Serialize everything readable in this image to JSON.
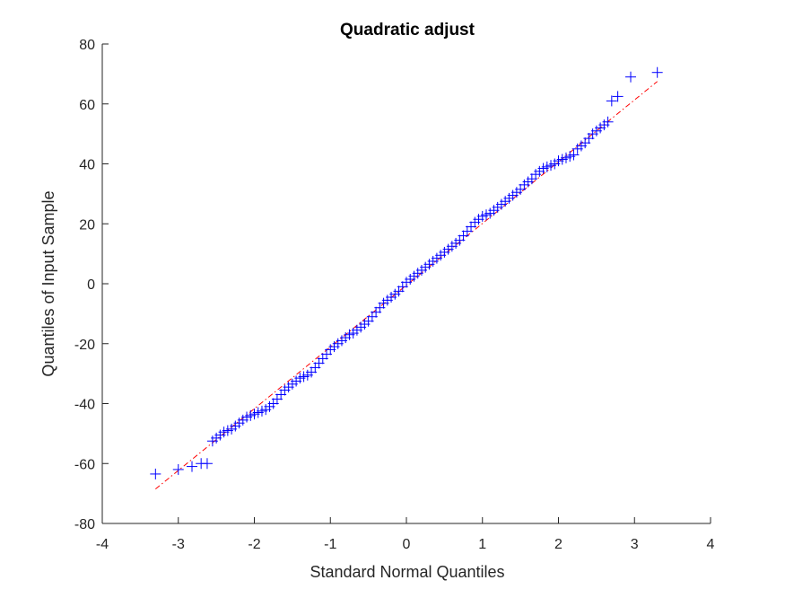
{
  "chart_data": {
    "type": "scatter",
    "title": "Quadratic adjust",
    "xlabel": "Standard Normal Quantiles",
    "ylabel": "Quantiles of Input Sample",
    "xlim": [
      -4,
      4
    ],
    "ylim": [
      -80,
      80
    ],
    "xticks": [
      -4,
      -3,
      -2,
      -1,
      0,
      1,
      2,
      3,
      4
    ],
    "yticks": [
      -80,
      -60,
      -40,
      -20,
      0,
      20,
      40,
      60,
      80
    ],
    "xtick_labels": [
      "-4",
      "-3",
      "-2",
      "-1",
      "0",
      "1",
      "2",
      "3",
      "4"
    ],
    "ytick_labels": [
      "-80",
      "-60",
      "-40",
      "-20",
      "0",
      "20",
      "40",
      "60",
      "80"
    ],
    "grid": false,
    "series": [
      {
        "marker": "+",
        "color": "#0000ff",
        "points": [
          [
            -3.3,
            -63.5
          ],
          [
            -3.0,
            -62.0
          ],
          [
            -2.82,
            -61.0
          ],
          [
            -2.7,
            -60.0
          ],
          [
            -2.62,
            -60.0
          ],
          [
            -2.55,
            -52.5
          ],
          [
            -2.5,
            -51.5
          ],
          [
            -2.45,
            -50.5
          ],
          [
            -2.4,
            -49.5
          ],
          [
            -2.35,
            -49.0
          ],
          [
            -2.3,
            -48.5
          ],
          [
            -2.25,
            -47.5
          ],
          [
            -2.2,
            -46.5
          ],
          [
            -2.15,
            -45.5
          ],
          [
            -2.1,
            -44.5
          ],
          [
            -2.05,
            -44.0
          ],
          [
            -2.0,
            -43.5
          ],
          [
            -1.95,
            -43.0
          ],
          [
            -1.9,
            -42.5
          ],
          [
            -1.85,
            -42.0
          ],
          [
            -1.8,
            -41.0
          ],
          [
            -1.75,
            -40.0
          ],
          [
            -1.7,
            -38.5
          ],
          [
            -1.65,
            -37.0
          ],
          [
            -1.6,
            -35.5
          ],
          [
            -1.55,
            -34.5
          ],
          [
            -1.5,
            -33.5
          ],
          [
            -1.45,
            -32.5
          ],
          [
            -1.4,
            -31.5
          ],
          [
            -1.35,
            -31.0
          ],
          [
            -1.3,
            -30.5
          ],
          [
            -1.25,
            -29.5
          ],
          [
            -1.2,
            -28.0
          ],
          [
            -1.15,
            -26.5
          ],
          [
            -1.1,
            -25.0
          ],
          [
            -1.05,
            -23.5
          ],
          [
            -1.0,
            -22.0
          ],
          [
            -0.95,
            -21.0
          ],
          [
            -0.9,
            -20.0
          ],
          [
            -0.85,
            -19.0
          ],
          [
            -0.8,
            -18.0
          ],
          [
            -0.75,
            -17.0
          ],
          [
            -0.7,
            -16.5
          ],
          [
            -0.65,
            -15.5
          ],
          [
            -0.6,
            -14.5
          ],
          [
            -0.55,
            -13.5
          ],
          [
            -0.5,
            -12.5
          ],
          [
            -0.45,
            -11.0
          ],
          [
            -0.4,
            -9.5
          ],
          [
            -0.35,
            -8.0
          ],
          [
            -0.3,
            -6.5
          ],
          [
            -0.25,
            -5.5
          ],
          [
            -0.2,
            -4.5
          ],
          [
            -0.15,
            -3.5
          ],
          [
            -0.1,
            -2.5
          ],
          [
            -0.05,
            -1.0
          ],
          [
            0.0,
            0.5
          ],
          [
            0.05,
            1.5
          ],
          [
            0.1,
            2.5
          ],
          [
            0.15,
            3.5
          ],
          [
            0.2,
            4.5
          ],
          [
            0.25,
            5.5
          ],
          [
            0.3,
            6.5
          ],
          [
            0.35,
            7.5
          ],
          [
            0.4,
            8.5
          ],
          [
            0.45,
            9.5
          ],
          [
            0.5,
            10.5
          ],
          [
            0.55,
            11.5
          ],
          [
            0.6,
            12.5
          ],
          [
            0.65,
            13.5
          ],
          [
            0.7,
            14.5
          ],
          [
            0.75,
            16.0
          ],
          [
            0.8,
            17.5
          ],
          [
            0.85,
            19.0
          ],
          [
            0.9,
            20.5
          ],
          [
            0.95,
            21.5
          ],
          [
            1.0,
            22.5
          ],
          [
            1.05,
            23.0
          ],
          [
            1.1,
            23.5
          ],
          [
            1.15,
            24.5
          ],
          [
            1.2,
            25.5
          ],
          [
            1.25,
            26.5
          ],
          [
            1.3,
            27.5
          ],
          [
            1.35,
            28.5
          ],
          [
            1.4,
            29.5
          ],
          [
            1.45,
            30.5
          ],
          [
            1.5,
            31.5
          ],
          [
            1.55,
            33.0
          ],
          [
            1.6,
            34.0
          ],
          [
            1.65,
            35.0
          ],
          [
            1.7,
            36.5
          ],
          [
            1.75,
            37.5
          ],
          [
            1.8,
            38.5
          ],
          [
            1.85,
            39.0
          ],
          [
            1.9,
            39.5
          ],
          [
            1.95,
            40.0
          ],
          [
            2.0,
            41.0
          ],
          [
            2.05,
            41.5
          ],
          [
            2.1,
            42.0
          ],
          [
            2.15,
            42.5
          ],
          [
            2.2,
            43.0
          ],
          [
            2.25,
            45.0
          ],
          [
            2.3,
            46.0
          ],
          [
            2.35,
            47.0
          ],
          [
            2.4,
            48.5
          ],
          [
            2.45,
            50.0
          ],
          [
            2.5,
            51.0
          ],
          [
            2.55,
            52.0
          ],
          [
            2.6,
            53.0
          ],
          [
            2.65,
            54.0
          ],
          [
            2.7,
            61.0
          ],
          [
            2.78,
            62.5
          ],
          [
            2.95,
            69.0
          ],
          [
            3.3,
            70.5
          ]
        ]
      }
    ],
    "reference_line": {
      "color": "#ff0000",
      "style": "dash-dot",
      "x": [
        -3.3,
        3.3
      ],
      "y": [
        -68.5,
        67.5
      ]
    }
  }
}
